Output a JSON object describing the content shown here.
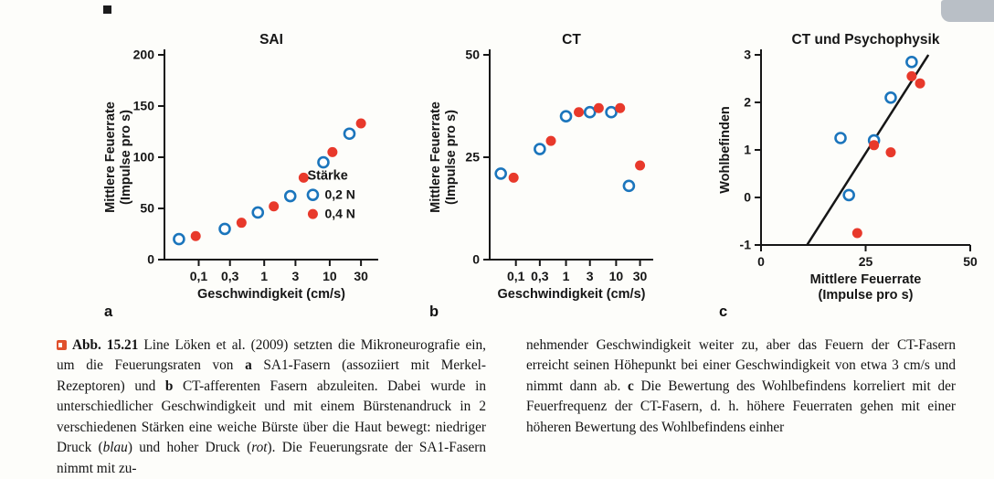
{
  "figure": {
    "panels": [
      "a",
      "b",
      "c"
    ]
  },
  "colors": {
    "blue": "#1b75bc",
    "red": "#e8392b",
    "axis_black": "#161616",
    "bullet_orange": "#e0502c"
  },
  "caption": {
    "left_segments": [
      {
        "text": "Abb. 15.21",
        "style": "bold"
      },
      {
        "text": "  Line Löken et al. (2009) setzten die Mikroneurografie ein, um die Feuerungsraten von ",
        "style": "normal"
      },
      {
        "text": "a",
        "style": "bold"
      },
      {
        "text": " SA1-Fasern (assoziiert mit Merkel-Rezeptoren) und ",
        "style": "normal"
      },
      {
        "text": "b",
        "style": "bold"
      },
      {
        "text": " CT-afferenten Fasern abzuleiten. Dabei wurde in unterschiedlicher Geschwindigkeit und mit einem Bürstenandruck in 2 verschiedenen Stärken eine weiche Bürste über die Haut bewegt: niedriger Druck (",
        "style": "normal"
      },
      {
        "text": "blau",
        "style": "italic"
      },
      {
        "text": ") und hoher Druck (",
        "style": "normal"
      },
      {
        "text": "rot",
        "style": "italic"
      },
      {
        "text": "). Die Feuerungsrate der SA1-Fasern nimmt mit zu-",
        "style": "normal"
      }
    ],
    "right_segments": [
      {
        "text": "nehmender Geschwindigkeit weiter zu, aber das Feuern der CT-Fasern erreicht seinen Höhepunkt bei einer Geschwindigkeit von etwa 3 cm/s und nimmt dann ab. ",
        "style": "normal"
      },
      {
        "text": "c",
        "style": "bold"
      },
      {
        "text": " Die Bewertung des Wohlbefindens korreliert mit der Feuerfrequenz der CT-Fasern, d. h. höhere Feuerraten gehen mit einer höheren Bewertung des Wohlbefindens einher",
        "style": "normal"
      }
    ]
  },
  "chart_data": [
    {
      "id": "sai",
      "type": "scatter",
      "title": "SAI",
      "xscale": "log",
      "xlim": [
        0.03,
        55
      ],
      "ylim": [
        0,
        200
      ],
      "xticks": [
        0.1,
        0.3,
        1,
        3,
        10,
        30
      ],
      "xtick_labels": [
        "0,1",
        "0,3",
        "1",
        "3",
        "10",
        "30"
      ],
      "yticks": [
        0,
        50,
        100,
        150,
        200
      ],
      "ytick_labels": [
        "0",
        "50",
        "100",
        "150",
        "200"
      ],
      "xlabel_lines": [
        "Geschwindigkeit (cm/s)"
      ],
      "ylabel_lines": [
        "Mittlere Feuerrate",
        "(Impulse pro s)"
      ],
      "legend": {
        "title": "Stärke",
        "items": [
          {
            "label": "0,2 N",
            "filled": false,
            "color": "#1b75bc"
          },
          {
            "label": "0,4 N",
            "filled": true,
            "color": "#e8392b"
          }
        ]
      },
      "series": [
        {
          "name": "0,2 N",
          "color": "#1b75bc",
          "filled": false,
          "points": [
            [
              0.05,
              20
            ],
            [
              0.25,
              30
            ],
            [
              0.8,
              46
            ],
            [
              2.5,
              62
            ],
            [
              8,
              95
            ],
            [
              20,
              123
            ]
          ]
        },
        {
          "name": "0,4 N",
          "color": "#e8392b",
          "filled": true,
          "points": [
            [
              0.09,
              23
            ],
            [
              0.45,
              36
            ],
            [
              1.4,
              52
            ],
            [
              4,
              80
            ],
            [
              11,
              105
            ],
            [
              30,
              133
            ]
          ]
        }
      ]
    },
    {
      "id": "ct",
      "type": "scatter",
      "title": "CT",
      "xscale": "log",
      "xlim": [
        0.03,
        55
      ],
      "ylim": [
        0,
        50
      ],
      "xticks": [
        0.1,
        0.3,
        1,
        3,
        10,
        30
      ],
      "xtick_labels": [
        "0,1",
        "0,3",
        "1",
        "3",
        "10",
        "30"
      ],
      "yticks": [
        0,
        25,
        50
      ],
      "ytick_labels": [
        "0",
        "25",
        "50"
      ],
      "xlabel_lines": [
        "Geschwindigkeit (cm/s)"
      ],
      "ylabel_lines": [
        "Mittlere Feuerrate",
        "(Impulse pro s)"
      ],
      "series": [
        {
          "name": "0,2 N",
          "color": "#1b75bc",
          "filled": false,
          "points": [
            [
              0.05,
              21
            ],
            [
              0.3,
              27
            ],
            [
              1,
              35
            ],
            [
              3,
              36
            ],
            [
              8,
              36
            ],
            [
              18,
              18
            ]
          ]
        },
        {
          "name": "0,4 N",
          "color": "#e8392b",
          "filled": true,
          "points": [
            [
              0.09,
              20
            ],
            [
              0.5,
              29
            ],
            [
              1.8,
              36
            ],
            [
              4.5,
              37
            ],
            [
              12,
              37
            ],
            [
              30,
              23
            ]
          ]
        }
      ]
    },
    {
      "id": "ct-psychophysik",
      "type": "scatter",
      "title": "CT und Psychophysik",
      "xscale": "linear",
      "xlim": [
        0,
        50
      ],
      "ylim": [
        -1,
        3
      ],
      "xticks": [
        0,
        25,
        50
      ],
      "xtick_labels": [
        "0",
        "25",
        "50"
      ],
      "yticks": [
        -1,
        0,
        1,
        2,
        3
      ],
      "ytick_labels": [
        "-1",
        "0",
        "1",
        "2",
        "3"
      ],
      "xlabel_lines": [
        "Mittlere Feuerrate",
        "(Impulse pro s)"
      ],
      "ylabel_lines": [
        "Wohlbefinden"
      ],
      "fit_line": {
        "points": [
          [
            11,
            -1
          ],
          [
            40,
            3
          ]
        ],
        "color": "#161616",
        "width": 2.5
      },
      "series": [
        {
          "name": "0,2 N",
          "color": "#1b75bc",
          "filled": false,
          "points": [
            [
              19,
              1.25
            ],
            [
              21,
              0.05
            ],
            [
              27,
              1.2
            ],
            [
              31,
              2.1
            ],
            [
              36,
              2.85
            ]
          ]
        },
        {
          "name": "0,4 N",
          "color": "#e8392b",
          "filled": true,
          "points": [
            [
              23,
              -0.75
            ],
            [
              27,
              1.1
            ],
            [
              31,
              0.95
            ],
            [
              36,
              2.55
            ],
            [
              38,
              2.4
            ]
          ]
        }
      ]
    }
  ]
}
